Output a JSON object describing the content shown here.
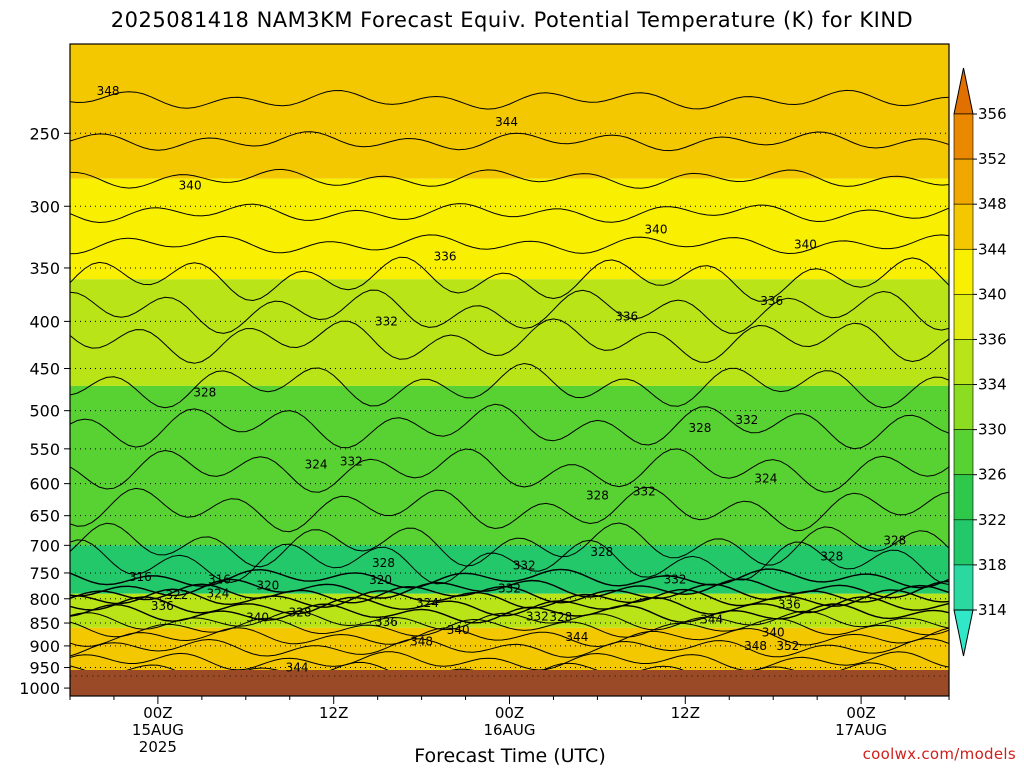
{
  "title": "2025081418 NAM3KM Forecast Equiv. Potential Temperature (K) for KIND",
  "credit": "coolwx.com/models",
  "chart_data": {
    "type": "heatmap",
    "title": "2025081418 NAM3KM Forecast Equiv. Potential Temperature (K) for KIND",
    "xlabel": "Forecast Time (UTC)",
    "ylabel": "",
    "x_range_hours": [
      -6,
      54
    ],
    "y_range_hpa": [
      1020,
      200
    ],
    "x_ticks": [
      {
        "hour": 0,
        "lines": [
          "00Z",
          "15AUG",
          "2025"
        ]
      },
      {
        "hour": 12,
        "lines": [
          "12Z"
        ]
      },
      {
        "hour": 24,
        "lines": [
          "00Z",
          "16AUG"
        ]
      },
      {
        "hour": 36,
        "lines": [
          "12Z"
        ]
      },
      {
        "hour": 48,
        "lines": [
          "00Z",
          "17AUG"
        ]
      }
    ],
    "y_ticks": [
      250,
      300,
      350,
      400,
      450,
      500,
      550,
      600,
      650,
      700,
      750,
      800,
      850,
      900,
      950,
      1000
    ],
    "colorbar": {
      "levels": [
        314,
        318,
        322,
        326,
        330,
        334,
        336,
        340,
        344,
        348,
        352,
        356
      ],
      "colors": [
        "#30e8c8",
        "#2ad8a0",
        "#22c86a",
        "#2ec84a",
        "#58d232",
        "#8cdc22",
        "#b8e418",
        "#e0ec12",
        "#f8f000",
        "#f4c800",
        "#f0a800",
        "#ea8800",
        "#e07000"
      ]
    },
    "layers": [
      {
        "p_top": 200,
        "p_bot": 280,
        "theta_e_K": 346
      },
      {
        "p_top": 280,
        "p_bot": 360,
        "theta_e_K": 340
      },
      {
        "p_top": 360,
        "p_bot": 470,
        "theta_e_K": 334
      },
      {
        "p_top": 470,
        "p_bot": 700,
        "theta_e_K": 326
      },
      {
        "p_top": 700,
        "p_bot": 790,
        "theta_e_K": 318
      },
      {
        "p_top": 790,
        "p_bot": 860,
        "theta_e_K": 334
      },
      {
        "p_top": 860,
        "p_bot": 1000,
        "theta_e_K": 346
      }
    ],
    "contour_labels": [
      {
        "text": "348",
        "hour": -3.4,
        "p": 225
      },
      {
        "text": "344",
        "hour": 23.8,
        "p": 243
      },
      {
        "text": "340",
        "hour": 2.2,
        "p": 285
      },
      {
        "text": "340",
        "hour": 34.0,
        "p": 318
      },
      {
        "text": "340",
        "hour": 44.2,
        "p": 330
      },
      {
        "text": "336",
        "hour": 19.6,
        "p": 340
      },
      {
        "text": "336",
        "hour": 41.9,
        "p": 380
      },
      {
        "text": "336",
        "hour": 32.0,
        "p": 395
      },
      {
        "text": "332",
        "hour": 15.6,
        "p": 400
      },
      {
        "text": "328",
        "hour": 3.2,
        "p": 478
      },
      {
        "text": "332",
        "hour": 40.2,
        "p": 512
      },
      {
        "text": "328",
        "hour": 37.0,
        "p": 522
      },
      {
        "text": "324",
        "hour": 10.8,
        "p": 572
      },
      {
        "text": "332",
        "hour": 13.2,
        "p": 568
      },
      {
        "text": "324",
        "hour": 41.5,
        "p": 592
      },
      {
        "text": "328",
        "hour": 30.0,
        "p": 618
      },
      {
        "text": "332",
        "hour": 33.2,
        "p": 612
      },
      {
        "text": "328",
        "hour": 46.0,
        "p": 720
      },
      {
        "text": "328",
        "hour": 50.3,
        "p": 692
      },
      {
        "text": "328",
        "hour": 15.4,
        "p": 732
      },
      {
        "text": "332",
        "hour": 25.0,
        "p": 736
      },
      {
        "text": "328",
        "hour": 30.3,
        "p": 712
      },
      {
        "text": "316",
        "hour": -1.2,
        "p": 758
      },
      {
        "text": "316",
        "hour": 4.2,
        "p": 762
      },
      {
        "text": "320",
        "hour": 7.5,
        "p": 774
      },
      {
        "text": "320",
        "hour": 15.2,
        "p": 763
      },
      {
        "text": "332",
        "hour": 24.0,
        "p": 780
      },
      {
        "text": "322",
        "hour": 1.3,
        "p": 792
      },
      {
        "text": "324",
        "hour": 4.1,
        "p": 790
      },
      {
        "text": "324",
        "hour": 18.4,
        "p": 808
      },
      {
        "text": "336",
        "hour": 0.3,
        "p": 815
      },
      {
        "text": "332",
        "hour": 35.3,
        "p": 762
      },
      {
        "text": "336",
        "hour": 43.1,
        "p": 812
      },
      {
        "text": "340",
        "hour": 6.8,
        "p": 838
      },
      {
        "text": "328",
        "hour": 9.7,
        "p": 828
      },
      {
        "text": "332",
        "hour": 25.9,
        "p": 836
      },
      {
        "text": "328",
        "hour": 27.5,
        "p": 837
      },
      {
        "text": "336",
        "hour": 15.6,
        "p": 848
      },
      {
        "text": "340",
        "hour": 20.5,
        "p": 865
      },
      {
        "text": "344",
        "hour": 37.8,
        "p": 842
      },
      {
        "text": "340",
        "hour": 42.0,
        "p": 870
      },
      {
        "text": "344",
        "hour": 28.6,
        "p": 880
      },
      {
        "text": "348",
        "hour": 18.0,
        "p": 890
      },
      {
        "text": "348",
        "hour": 40.8,
        "p": 900
      },
      {
        "text": "352",
        "hour": 43.0,
        "p": 900
      },
      {
        "text": "344",
        "hour": 9.5,
        "p": 950
      }
    ]
  }
}
